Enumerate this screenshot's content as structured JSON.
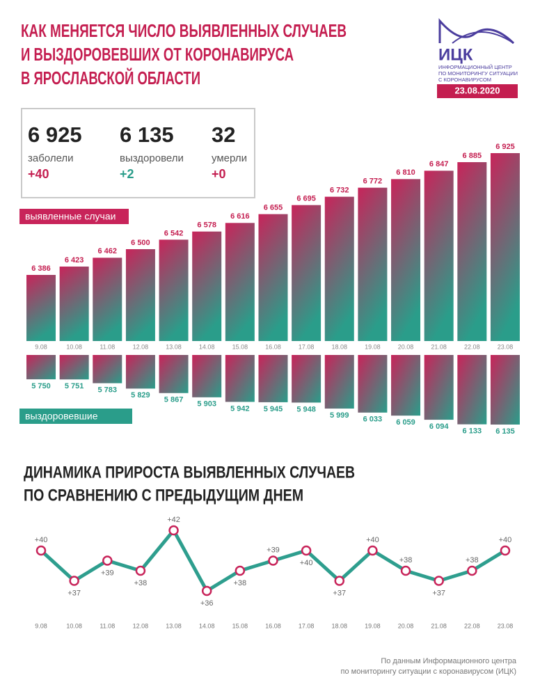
{
  "header": {
    "title_lines": [
      "КАК МЕНЯЕТСЯ ЧИСЛО ВЫЯВЛЕННЫХ СЛУЧАЕВ",
      "И ВЫЗДОРОВЕВШИХ ОТ КОРОНАВИРУСА",
      "В ЯРОСЛАВСКОЙ ОБЛАСТИ"
    ],
    "logo_name": "ИЦК",
    "logo_subtitle_lines": [
      "ИНФОРМАЦИОННЫЙ ЦЕНТР",
      "ПО МОНИТОРИНГУ СИТУАЦИИ",
      "С КОРОНАВИРУСОМ"
    ],
    "date": "23.08.2020"
  },
  "stats": [
    {
      "value": "6 925",
      "label": "заболели",
      "change": "+40"
    },
    {
      "value": "6 135",
      "label": "выздоровели",
      "change": "+2"
    },
    {
      "value": "32",
      "label": "умерли",
      "change": "+0"
    }
  ],
  "chart_data": [
    {
      "type": "bar",
      "title": "выявленные случаи",
      "categories": [
        "9.08",
        "10.08",
        "11.08",
        "12.08",
        "13.08",
        "14.08",
        "15.08",
        "16.08",
        "17.08",
        "18.08",
        "19.08",
        "20.08",
        "21.08",
        "22.08",
        "23.08"
      ],
      "values": [
        6386,
        6423,
        6462,
        6500,
        6542,
        6578,
        6616,
        6655,
        6695,
        6732,
        6772,
        6810,
        6847,
        6885,
        6925
      ],
      "value_labels": [
        "6 386",
        "6 423",
        "6 462",
        "6 500",
        "6 542",
        "6 578",
        "6 616",
        "6 655",
        "6 695",
        "6 732",
        "6 772",
        "6 810",
        "6 847",
        "6 885",
        "6 925"
      ],
      "colors": [
        "#c8245a",
        "#2a9d8a"
      ]
    },
    {
      "type": "bar",
      "title": "выздоровевшие",
      "values": [
        5750,
        5751,
        5783,
        5829,
        5867,
        5903,
        5942,
        5945,
        5948,
        5999,
        6033,
        6059,
        6094,
        6133,
        6135
      ],
      "value_labels": [
        "5 750",
        "5 751",
        "5 783",
        "5 829",
        "5 867",
        "5 903",
        "5 942",
        "5 945",
        "5 948",
        "5 999",
        "6 033",
        "6 059",
        "6 094",
        "6 133",
        "6 135"
      ],
      "colors": [
        "#c8245a",
        "#2a9d8a"
      ]
    },
    {
      "type": "line",
      "title_lines": [
        "ДИНАМИКА ПРИРОСТА ВЫЯВЛЕННЫХ СЛУЧАЕВ",
        "ПО СРАВНЕНИЮ С ПРЕДЫДУЩИМ ДНЕМ"
      ],
      "categories": [
        "9.08",
        "10.08",
        "11.08",
        "12.08",
        "13.08",
        "14.08",
        "15.08",
        "16.08",
        "17.08",
        "18.08",
        "19.08",
        "20.08",
        "21.08",
        "22.08",
        "23.08"
      ],
      "values": [
        40,
        37,
        39,
        38,
        42,
        36,
        38,
        39,
        40,
        37,
        40,
        38,
        37,
        38,
        40
      ],
      "value_labels": [
        "+40",
        "+37",
        "+39",
        "+38",
        "+42",
        "+36",
        "+38",
        "+39",
        "+40",
        "+37",
        "+40",
        "+38",
        "+37",
        "+38",
        "+40"
      ],
      "color": "#2e9e8e",
      "marker_color": "#c8245a"
    }
  ],
  "footer_lines": [
    "По данным Информационного центра",
    "по мониторингу ситуации с коронавирусом (ИЦК)"
  ]
}
